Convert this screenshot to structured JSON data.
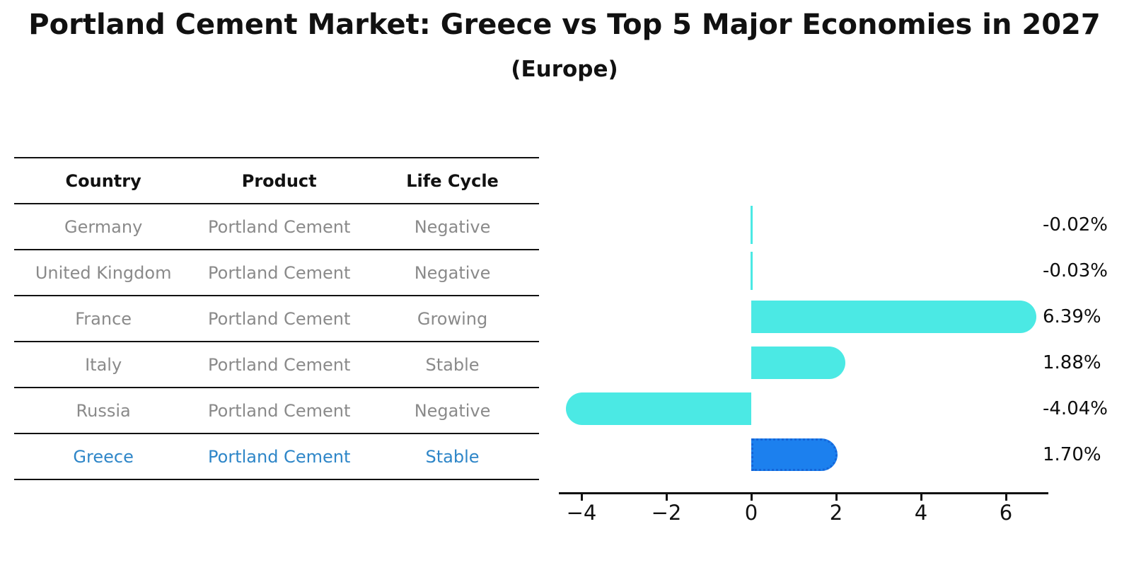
{
  "title": "Portland Cement Market: Greece vs Top 5 Major Economies in 2027",
  "subtitle": "(Europe)",
  "table": {
    "headers": [
      "Country",
      "Product",
      "Life Cycle"
    ],
    "rows": [
      {
        "country": "Germany",
        "product": "Portland Cement",
        "life_cycle": "Negative",
        "highlight": false
      },
      {
        "country": "United Kingdom",
        "product": "Portland Cement",
        "life_cycle": "Negative",
        "highlight": false
      },
      {
        "country": "France",
        "product": "Portland Cement",
        "life_cycle": "Growing",
        "highlight": false
      },
      {
        "country": "Italy",
        "product": "Portland Cement",
        "life_cycle": "Stable",
        "highlight": false
      },
      {
        "country": "Russia",
        "product": "Portland Cement",
        "life_cycle": "Negative",
        "highlight": false
      },
      {
        "country": "Greece",
        "product": "Portland Cement",
        "life_cycle": "Stable",
        "highlight": true
      }
    ]
  },
  "chart_data": {
    "type": "bar",
    "orientation": "horizontal",
    "categories": [
      "Germany",
      "United Kingdom",
      "France",
      "Italy",
      "Russia",
      "Greece"
    ],
    "values": [
      -0.02,
      -0.03,
      6.39,
      1.88,
      -4.04,
      1.7
    ],
    "value_labels": [
      "-0.02%",
      "-0.03%",
      "6.39%",
      "1.88%",
      "-4.04%",
      "1.70%"
    ],
    "x_ticks": [
      -4,
      -2,
      0,
      2,
      4,
      6
    ],
    "x_tick_labels": [
      "−4",
      "−2",
      "0",
      "2",
      "4",
      "6"
    ],
    "xlim": [
      -4.56,
      6.95
    ],
    "grid": false,
    "legend": null,
    "highlight_category": "Greece",
    "colors": {
      "default_bar": "#4be9e4",
      "highlight_bar": "#1c80ee",
      "highlight_border": "#1565d8",
      "row_text": "#8a8a8a",
      "highlight_text": "#2e86c8",
      "axis": "#111111"
    }
  }
}
